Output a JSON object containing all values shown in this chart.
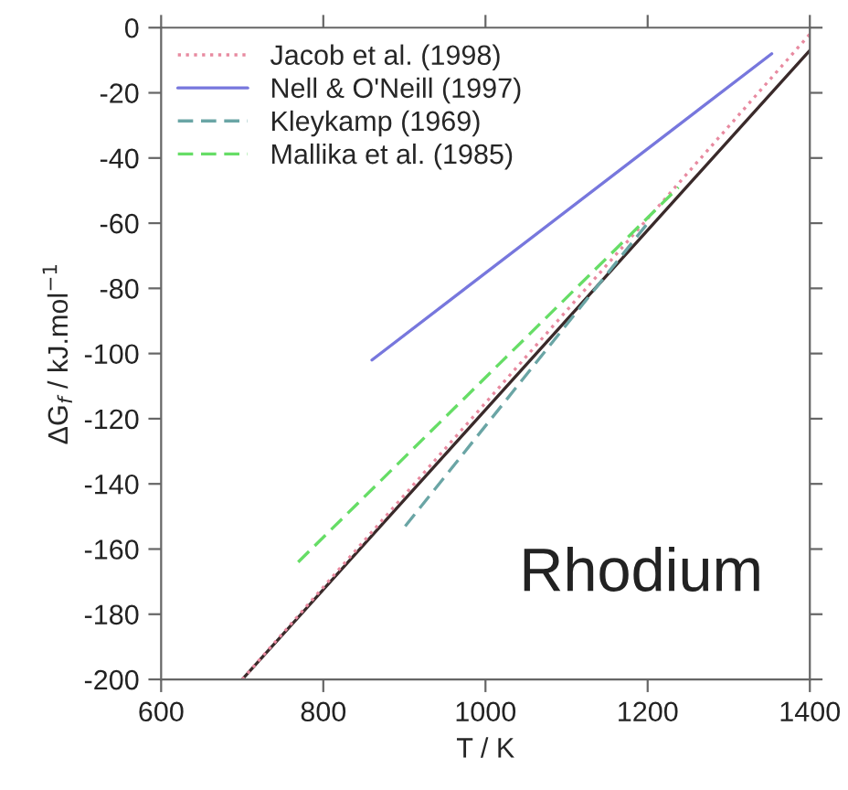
{
  "chart_data": {
    "type": "line",
    "xlabel": "T / K",
    "ylabel": "ΔG$_{f}$ / kJ.mol$^{−1}$",
    "xlim": [
      600,
      1400
    ],
    "xticks": [
      600,
      800,
      1000,
      1200,
      1400
    ],
    "ylim": [
      -200,
      0
    ],
    "yticks": [
      -200,
      -180,
      -160,
      -140,
      -120,
      -100,
      -80,
      -60,
      -40,
      -20,
      0
    ],
    "series": [
      {
        "color": "#3a2a2a",
        "x": [
          700,
          1400
        ],
        "values": [
          -200,
          -7
        ],
        "line_style": "solid"
      },
      {
        "name": "Jacob et al. (1998)",
        "color": "#e88aa0",
        "x": [
          700,
          1400
        ],
        "values": [
          -200,
          -2
        ],
        "line_style": "dotted"
      },
      {
        "name": "Nell & O'Neill (1997)",
        "color": "#7777dd",
        "x": [
          860,
          1353
        ],
        "values": [
          -102,
          -8
        ],
        "line_style": "solid"
      },
      {
        "name": "Kleykamp (1969)",
        "color": "#6aa5a5",
        "x": [
          901,
          1200
        ],
        "values": [
          -153,
          -60
        ],
        "line_style": "dashed"
      },
      {
        "name": "Mallika et al. (1985)",
        "color": "#66dd66",
        "x": [
          769,
          1238
        ],
        "values": [
          -164,
          -49
        ],
        "line_style": "dashed"
      }
    ],
    "legend": "top left",
    "grid": false,
    "annotations": [
      "Rhodium"
    ]
  }
}
